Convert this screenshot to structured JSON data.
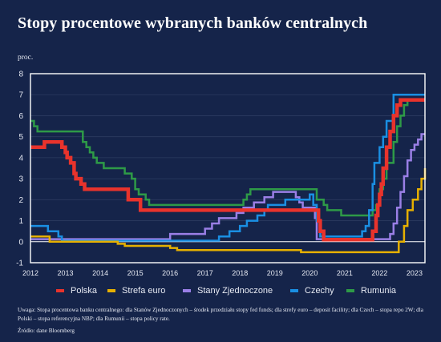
{
  "title": "Stopy procentowe wybranych banków centralnych",
  "unit_label": "proc.",
  "footnote": "Uwaga: Stopa procentowa banku centralnego: dla Stanów Zjednoczonych – środek przedziału stopy fed funds; dla strefy euro – deposit facility; dla Czech – stopa repo 2W; dla Polski – stopa referencyjna NBP; dla Rumunii – stopa policy rate.",
  "source": "Źródło: dane Bloomberg",
  "colors": {
    "background": "#15244a",
    "plot_border": "#ffffff",
    "grid": "#2c3b60",
    "zero_line": "#ffffff"
  },
  "chart_data": {
    "type": "line",
    "title": "Stopy procentowe wybranych banków centralnych",
    "ylabel": "proc.",
    "xlim": [
      2012,
      2023.3
    ],
    "ylim": [
      -1,
      8
    ],
    "yticks": [
      -1,
      0,
      1,
      2,
      3,
      4,
      5,
      6,
      7,
      8
    ],
    "xticks": [
      2012,
      2013,
      2014,
      2015,
      2016,
      2017,
      2018,
      2019,
      2020,
      2021,
      2022,
      2023
    ],
    "grid": true,
    "legend_position": "bottom",
    "series": [
      {
        "name": "Rumunia",
        "color": "#2e9a47",
        "width": 2.5,
        "points": [
          [
            2012.0,
            5.75
          ],
          [
            2012.1,
            5.5
          ],
          [
            2012.2,
            5.25
          ],
          [
            2013.4,
            5.25
          ],
          [
            2013.5,
            4.75
          ],
          [
            2013.6,
            4.5
          ],
          [
            2013.7,
            4.25
          ],
          [
            2013.8,
            4.0
          ],
          [
            2013.9,
            3.75
          ],
          [
            2014.1,
            3.5
          ],
          [
            2014.6,
            3.5
          ],
          [
            2014.7,
            3.25
          ],
          [
            2014.9,
            3.0
          ],
          [
            2015.0,
            2.5
          ],
          [
            2015.1,
            2.25
          ],
          [
            2015.3,
            2.0
          ],
          [
            2015.4,
            1.75
          ],
          [
            2018.0,
            1.75
          ],
          [
            2018.1,
            2.0
          ],
          [
            2018.2,
            2.25
          ],
          [
            2018.3,
            2.5
          ],
          [
            2020.0,
            2.5
          ],
          [
            2020.2,
            2.0
          ],
          [
            2020.4,
            1.75
          ],
          [
            2020.5,
            1.5
          ],
          [
            2020.9,
            1.25
          ],
          [
            2021.6,
            1.25
          ],
          [
            2021.8,
            1.5
          ],
          [
            2021.9,
            1.75
          ],
          [
            2022.0,
            2.5
          ],
          [
            2022.1,
            3.0
          ],
          [
            2022.2,
            3.75
          ],
          [
            2022.4,
            4.75
          ],
          [
            2022.5,
            5.5
          ],
          [
            2022.6,
            6.0
          ],
          [
            2022.7,
            6.5
          ],
          [
            2022.8,
            6.75
          ],
          [
            2023.3,
            6.75
          ]
        ]
      },
      {
        "name": "Stany Zjednoczone",
        "color": "#9a7fe6",
        "width": 2.5,
        "points": [
          [
            2012.0,
            0.12
          ],
          [
            2015.9,
            0.12
          ],
          [
            2016.0,
            0.37
          ],
          [
            2016.9,
            0.37
          ],
          [
            2017.0,
            0.62
          ],
          [
            2017.2,
            0.87
          ],
          [
            2017.4,
            1.12
          ],
          [
            2017.9,
            1.37
          ],
          [
            2018.1,
            1.62
          ],
          [
            2018.4,
            1.87
          ],
          [
            2018.7,
            2.12
          ],
          [
            2018.95,
            2.37
          ],
          [
            2019.5,
            2.37
          ],
          [
            2019.6,
            2.12
          ],
          [
            2019.7,
            1.87
          ],
          [
            2019.8,
            1.62
          ],
          [
            2020.15,
            1.12
          ],
          [
            2020.2,
            0.12
          ],
          [
            2022.2,
            0.12
          ],
          [
            2022.3,
            0.37
          ],
          [
            2022.4,
            0.87
          ],
          [
            2022.5,
            1.62
          ],
          [
            2022.6,
            2.37
          ],
          [
            2022.7,
            3.12
          ],
          [
            2022.8,
            3.87
          ],
          [
            2022.9,
            4.37
          ],
          [
            2023.0,
            4.62
          ],
          [
            2023.1,
            4.87
          ],
          [
            2023.2,
            5.12
          ],
          [
            2023.3,
            5.12
          ]
        ]
      },
      {
        "name": "Czechy",
        "color": "#1a8fe3",
        "width": 2.5,
        "points": [
          [
            2012.0,
            0.75
          ],
          [
            2012.4,
            0.75
          ],
          [
            2012.5,
            0.5
          ],
          [
            2012.8,
            0.25
          ],
          [
            2012.9,
            0.05
          ],
          [
            2017.3,
            0.05
          ],
          [
            2017.4,
            0.25
          ],
          [
            2017.7,
            0.5
          ],
          [
            2018.0,
            0.75
          ],
          [
            2018.2,
            1.0
          ],
          [
            2018.5,
            1.25
          ],
          [
            2018.7,
            1.5
          ],
          [
            2018.8,
            1.75
          ],
          [
            2019.3,
            2.0
          ],
          [
            2020.0,
            2.25
          ],
          [
            2020.1,
            1.75
          ],
          [
            2020.2,
            1.0
          ],
          [
            2020.3,
            0.25
          ],
          [
            2021.4,
            0.25
          ],
          [
            2021.5,
            0.5
          ],
          [
            2021.6,
            0.75
          ],
          [
            2021.7,
            1.5
          ],
          [
            2021.8,
            2.75
          ],
          [
            2021.85,
            3.75
          ],
          [
            2022.0,
            4.5
          ],
          [
            2022.1,
            5.0
          ],
          [
            2022.2,
            5.75
          ],
          [
            2022.4,
            7.0
          ],
          [
            2023.3,
            7.0
          ]
        ]
      },
      {
        "name": "Strefa euro",
        "color": "#e6b000",
        "width": 2.5,
        "points": [
          [
            2012.0,
            0.25
          ],
          [
            2012.5,
            0.25
          ],
          [
            2012.55,
            0.0
          ],
          [
            2014.4,
            0.0
          ],
          [
            2014.5,
            -0.1
          ],
          [
            2014.7,
            -0.2
          ],
          [
            2015.9,
            -0.2
          ],
          [
            2016.0,
            -0.3
          ],
          [
            2016.2,
            -0.4
          ],
          [
            2019.7,
            -0.4
          ],
          [
            2019.75,
            -0.5
          ],
          [
            2022.5,
            -0.5
          ],
          [
            2022.55,
            0.0
          ],
          [
            2022.7,
            0.75
          ],
          [
            2022.8,
            1.5
          ],
          [
            2022.95,
            2.0
          ],
          [
            2023.1,
            2.5
          ],
          [
            2023.2,
            3.0
          ],
          [
            2023.3,
            3.5
          ]
        ]
      },
      {
        "name": "Polska",
        "color": "#e8332c",
        "width": 4.5,
        "points": [
          [
            2012.0,
            4.5
          ],
          [
            2012.35,
            4.5
          ],
          [
            2012.4,
            4.75
          ],
          [
            2012.85,
            4.75
          ],
          [
            2012.9,
            4.5
          ],
          [
            2013.0,
            4.25
          ],
          [
            2013.05,
            4.0
          ],
          [
            2013.15,
            3.75
          ],
          [
            2013.25,
            3.25
          ],
          [
            2013.3,
            3.0
          ],
          [
            2013.45,
            2.75
          ],
          [
            2013.55,
            2.5
          ],
          [
            2014.75,
            2.5
          ],
          [
            2014.8,
            2.0
          ],
          [
            2015.1,
            2.0
          ],
          [
            2015.15,
            1.5
          ],
          [
            2020.2,
            1.5
          ],
          [
            2020.25,
            1.0
          ],
          [
            2020.3,
            0.5
          ],
          [
            2020.4,
            0.1
          ],
          [
            2021.75,
            0.1
          ],
          [
            2021.8,
            0.5
          ],
          [
            2021.9,
            1.25
          ],
          [
            2021.95,
            1.75
          ],
          [
            2022.0,
            2.25
          ],
          [
            2022.05,
            2.75
          ],
          [
            2022.1,
            3.5
          ],
          [
            2022.2,
            4.5
          ],
          [
            2022.3,
            5.25
          ],
          [
            2022.4,
            6.0
          ],
          [
            2022.5,
            6.5
          ],
          [
            2022.6,
            6.75
          ],
          [
            2023.3,
            6.75
          ]
        ]
      }
    ]
  },
  "legend": [
    {
      "label": "Polska",
      "color": "#e8332c"
    },
    {
      "label": "Strefa euro",
      "color": "#e6b000"
    },
    {
      "label": "Stany Zjednoczone",
      "color": "#9a7fe6"
    },
    {
      "label": "Czechy",
      "color": "#1a8fe3"
    },
    {
      "label": "Rumunia",
      "color": "#2e9a47"
    }
  ]
}
